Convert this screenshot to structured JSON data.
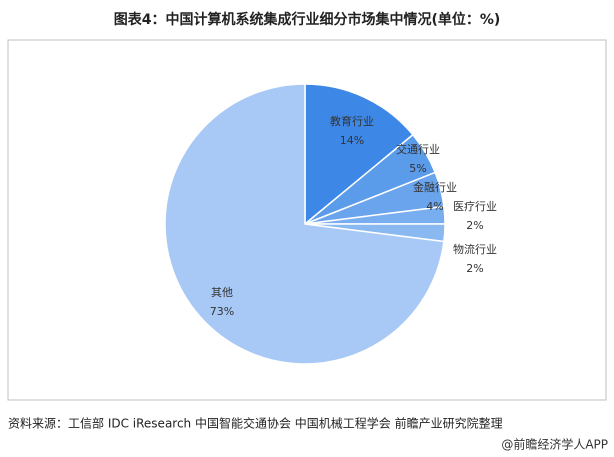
{
  "chart_data": {
    "type": "pie",
    "title": "图表4：中国计算机系统集成行业细分市场集中情况(单位：%)",
    "categories": [
      "教育行业",
      "交通行业",
      "金融行业",
      "医疗行业",
      "物流行业",
      "其他"
    ],
    "values": [
      14,
      5,
      4,
      2,
      2,
      73
    ],
    "value_labels": [
      "14%",
      "5%",
      "4%",
      "2%",
      "2%",
      "73%"
    ],
    "colors": [
      "#3d87e6",
      "#5a9bea",
      "#69a4ed",
      "#78aeef",
      "#8ab9f1",
      "#a8c9f5"
    ],
    "source": "资料来源：工信部 IDC iResearch 中国智能交通协会 中国机械工程学会 前瞻产业研究院整理",
    "credit": "@前瞻经济学人APP"
  }
}
